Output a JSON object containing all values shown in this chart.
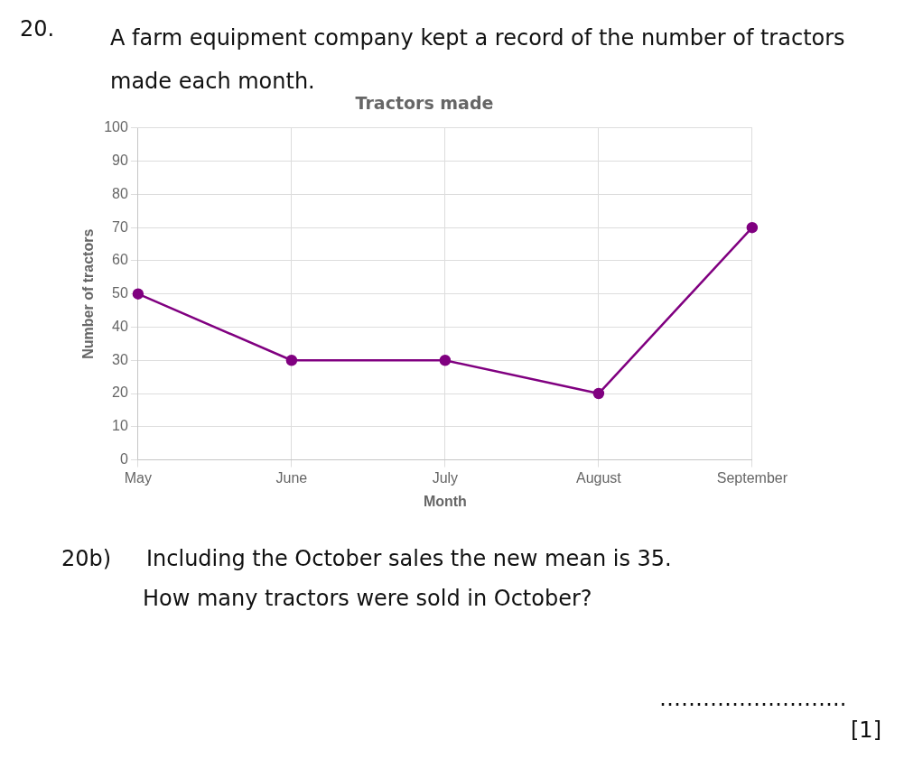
{
  "chart_data": {
    "type": "line",
    "title": "Tractors made",
    "xlabel": "Month",
    "ylabel": "Number of tractors",
    "categories": [
      "May",
      "June",
      "July",
      "August",
      "September"
    ],
    "series": [
      {
        "color": "#800080",
        "values": [
          50,
          30,
          30,
          20,
          70
        ]
      }
    ],
    "ylim": [
      0,
      100
    ],
    "yticks": [
      0,
      10,
      20,
      30,
      40,
      50,
      60,
      70,
      80,
      90,
      100
    ],
    "grid": true,
    "legend": false,
    "marker": "circle",
    "line_style": "solid",
    "annotations": [
      "20.",
      "A farm equipment company kept a record of the number of tractors made each month.",
      "20b)",
      "Including the October sales the new mean is 35.",
      "How many tractors were sold in October?",
      "……………………..",
      "[1]"
    ]
  }
}
